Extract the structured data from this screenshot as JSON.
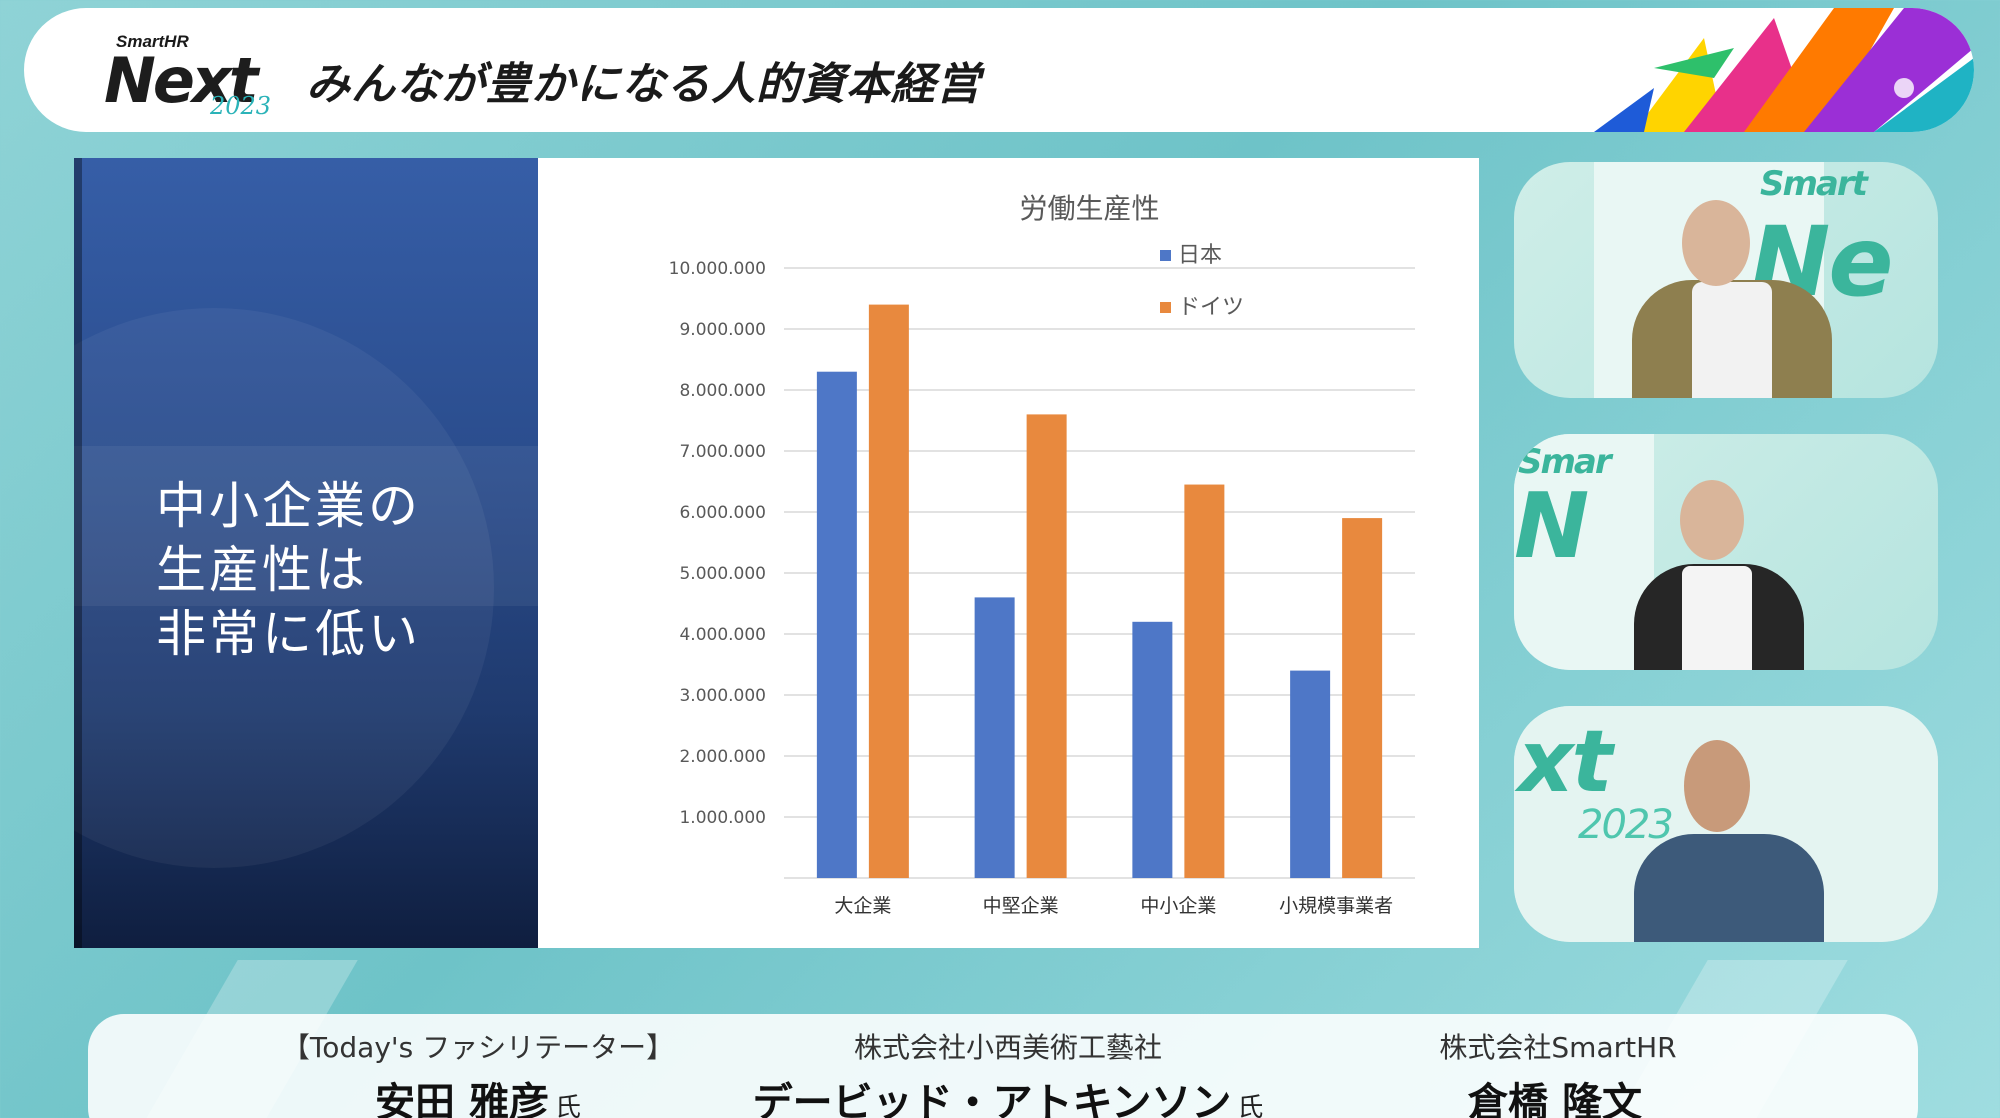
{
  "header": {
    "logo_small": "SmartHR",
    "logo_main": "Next",
    "logo_year": "2023",
    "title": "みんなが豊かになる人的資本経営"
  },
  "slide": {
    "heading_lines": [
      "中小企業の",
      "生産性は",
      "非常に低い"
    ]
  },
  "chart_data": {
    "type": "bar",
    "title": "労働生産性",
    "categories": [
      "大企業",
      "中堅企業",
      "中小企業",
      "小規模事業者"
    ],
    "series": [
      {
        "name": "日本",
        "color": "#4e77c7",
        "values": [
          8300000,
          4600000,
          4200000,
          3400000
        ]
      },
      {
        "name": "ドイツ",
        "color": "#e8893e",
        "values": [
          9400000,
          7600000,
          6450000,
          5900000
        ]
      }
    ],
    "ylim": [
      0,
      10000000
    ],
    "yticks": [
      "1.000.000",
      "2.000.000",
      "3.000.000",
      "4.000.000",
      "5.000.000",
      "6.000.000",
      "7.000.000",
      "8.000.000",
      "9.000.000",
      "10.000.000"
    ],
    "grid": true,
    "legend": "top-right"
  },
  "cameras": {
    "cam1_brand": "Smart",
    "cam1_brand2": "Ne",
    "cam2_brand": "Smar",
    "cam2_brand2": "N",
    "cam3_brand": "xt",
    "cam3_year": "2023"
  },
  "speakers": [
    {
      "role": "【Today's ファシリテーター】",
      "name": "安田 雅彦",
      "honorific": "氏"
    },
    {
      "role": "株式会社小西美術工藝社",
      "name": "デービッド・アトキンソン",
      "honorific": "氏"
    },
    {
      "role": "株式会社SmartHR",
      "name": "倉橋 隆文",
      "honorific": ""
    }
  ]
}
